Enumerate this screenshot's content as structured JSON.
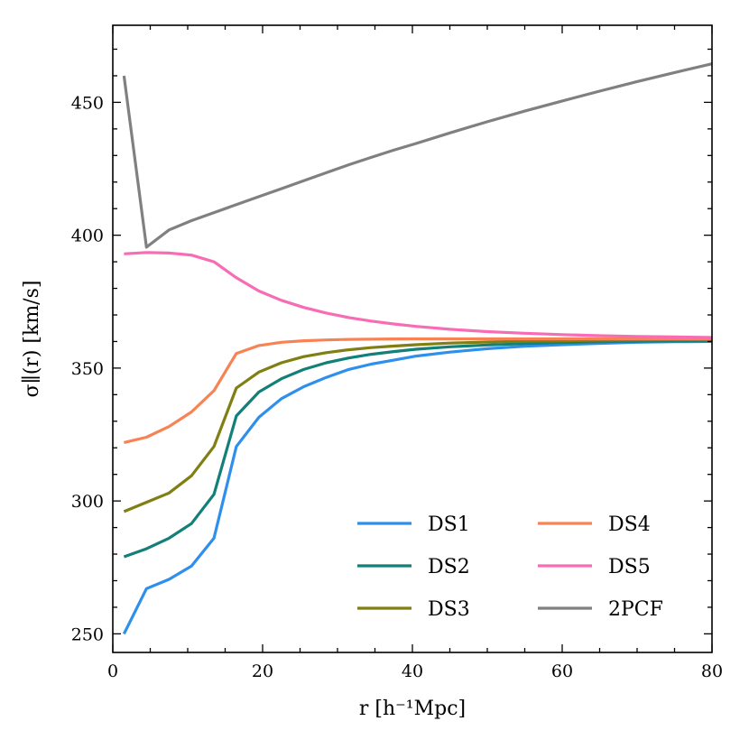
{
  "chart_data": {
    "type": "line",
    "title": "",
    "xlabel": "r [h⁻¹Mpc]",
    "ylabel": "σ∥(r) [km/s]",
    "xlim": [
      0,
      80
    ],
    "ylim": [
      243,
      479
    ],
    "xticks": [
      0,
      20,
      40,
      60,
      80
    ],
    "yticks": [
      250,
      300,
      350,
      400,
      450
    ],
    "grid": false,
    "legend_placement": "lower-right",
    "series": [
      {
        "name": "DS1",
        "color": "#2e8fec",
        "x": [
          1.5,
          4.5,
          7.5,
          10.5,
          13.5,
          16.5,
          19.5,
          22.5,
          25.5,
          28.5,
          31.5,
          34.5,
          37.5,
          40.5,
          45,
          50,
          55,
          60,
          65,
          70,
          75,
          80
        ],
        "y": [
          250,
          267,
          270.5,
          275.5,
          286,
          320.5,
          331.5,
          338.5,
          343,
          346.5,
          349.5,
          351.5,
          353,
          354.5,
          356,
          357.3,
          358.2,
          358.8,
          359.3,
          359.7,
          359.9,
          360
        ]
      },
      {
        "name": "DS2",
        "color": "#128078",
        "x": [
          1.5,
          4.5,
          7.5,
          10.5,
          13.5,
          16.5,
          19.5,
          22.5,
          25.5,
          28.5,
          31.5,
          34.5,
          37.5,
          40.5,
          45,
          50,
          55,
          60,
          65,
          70,
          75,
          80
        ],
        "y": [
          279,
          282,
          286,
          291.5,
          302.5,
          332,
          341,
          346,
          349.5,
          352,
          353.8,
          355.2,
          356.2,
          357.1,
          358,
          358.7,
          359.2,
          359.6,
          359.9,
          360.1,
          360.2,
          360.3
        ]
      },
      {
        "name": "DS3",
        "color": "#7f7f12",
        "x": [
          1.5,
          4.5,
          7.5,
          10.5,
          13.5,
          16.5,
          19.5,
          22.5,
          25.5,
          28.5,
          31.5,
          34.5,
          37.5,
          40.5,
          45,
          50,
          55,
          60,
          65,
          70,
          75,
          80
        ],
        "y": [
          296,
          299.5,
          303,
          309.5,
          320.5,
          342.5,
          348.5,
          352,
          354.3,
          355.8,
          356.9,
          357.7,
          358.3,
          358.8,
          359.4,
          359.8,
          360.1,
          360.3,
          360.5,
          360.6,
          360.7,
          360.7
        ]
      },
      {
        "name": "DS4",
        "color": "#f78355",
        "x": [
          1.5,
          4.5,
          7.5,
          10.5,
          13.5,
          16.5,
          19.5,
          22.5,
          25.5,
          28.5,
          31.5,
          34.5,
          37.5,
          40.5,
          45,
          50,
          55,
          60,
          65,
          70,
          75,
          80
        ],
        "y": [
          322,
          324,
          328,
          333.5,
          341.5,
          355.5,
          358.5,
          359.7,
          360.3,
          360.6,
          360.8,
          360.9,
          360.95,
          361,
          361,
          361,
          361,
          361,
          361,
          361,
          361,
          361
        ]
      },
      {
        "name": "DS5",
        "color": "#f76cb4",
        "x": [
          1.5,
          4.5,
          7.5,
          10.5,
          13.5,
          16.5,
          19.5,
          22.5,
          25.5,
          28.5,
          31.5,
          34.5,
          37.5,
          40.5,
          45,
          50,
          55,
          60,
          65,
          70,
          75,
          80
        ],
        "y": [
          393,
          393.5,
          393.3,
          392.5,
          390,
          384,
          379,
          375.5,
          372.8,
          370.7,
          369,
          367.7,
          366.6,
          365.7,
          364.6,
          363.7,
          363.1,
          362.6,
          362.2,
          361.9,
          361.7,
          361.5
        ]
      },
      {
        "name": "2PCF",
        "color": "#808080",
        "x": [
          1.5,
          4.5,
          7.5,
          10.5,
          13.5,
          16.5,
          19.5,
          22.5,
          25.5,
          28.5,
          31.5,
          34.5,
          37.5,
          40.5,
          45,
          50,
          55,
          60,
          65,
          70,
          75,
          80
        ],
        "y": [
          460,
          395.5,
          402,
          405.5,
          408.5,
          411.5,
          414.5,
          417.5,
          420.5,
          423.5,
          426.5,
          429.3,
          432,
          434.5,
          438.5,
          442.7,
          446.7,
          450.5,
          454.2,
          457.8,
          461.2,
          464.5
        ]
      }
    ]
  }
}
